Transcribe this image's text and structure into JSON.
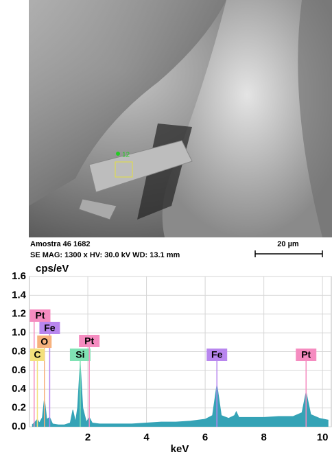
{
  "sem_image": {
    "marker": "12",
    "caption_title": "Amostra 46 1682",
    "caption_details": "SE  MAG: 1300 x  HV: 30.0 kV  WD: 13.1 mm",
    "scale_bar": "20 µm"
  },
  "chart_data": {
    "type": "area",
    "y_label": "cps/eV",
    "x_label": "keV",
    "x": [
      0.1,
      0.2,
      0.28,
      0.35,
      0.45,
      0.52,
      0.6,
      0.7,
      0.8,
      1.0,
      1.2,
      1.4,
      1.49,
      1.58,
      1.65,
      1.74,
      1.83,
      1.95,
      2.05,
      2.15,
      2.4,
      3.0,
      3.5,
      4.0,
      4.5,
      5.0,
      5.5,
      6.0,
      6.25,
      6.4,
      6.55,
      6.8,
      7.0,
      7.06,
      7.15,
      7.5,
      8.0,
      8.5,
      9.0,
      9.3,
      9.44,
      9.6,
      9.9,
      10.2
    ],
    "values": [
      0.02,
      0.05,
      0.08,
      0.04,
      0.1,
      0.3,
      0.08,
      0.1,
      0.03,
      0.02,
      0.02,
      0.04,
      0.18,
      0.05,
      0.2,
      0.68,
      0.2,
      0.05,
      0.1,
      0.04,
      0.03,
      0.03,
      0.03,
      0.04,
      0.05,
      0.05,
      0.06,
      0.08,
      0.12,
      0.45,
      0.12,
      0.09,
      0.12,
      0.16,
      0.1,
      0.1,
      0.1,
      0.11,
      0.11,
      0.15,
      0.37,
      0.13,
      0.09,
      0.07
    ],
    "color": "#35a3b6",
    "xlim": [
      0,
      10.3
    ],
    "ylim": [
      0,
      1.6
    ],
    "xticks": [
      2,
      4,
      6,
      8,
      10
    ],
    "yticks": [
      {
        "value": 0,
        "label": "0.0"
      },
      0.2,
      0.4,
      0.6,
      0.8,
      {
        "value": 1,
        "label": "1.0"
      },
      1.2,
      1.4,
      1.6
    ],
    "grid": true,
    "peak_labels": [
      {
        "label": "Pt",
        "energy": 0.17,
        "color": "#f58cc0"
      },
      {
        "label": "Fe",
        "energy": 0.7,
        "color": "#b886ee"
      },
      {
        "label": "O",
        "energy": 0.52,
        "color": "#f7b27e"
      },
      {
        "label": "C",
        "energy": 0.28,
        "color": "#f3e07c"
      },
      {
        "label": "Si",
        "energy": 1.74,
        "color": "#80e2b4"
      },
      {
        "label": "Pt",
        "energy": 2.05,
        "color": "#f58cc0"
      },
      {
        "label": "Fe",
        "energy": 6.4,
        "color": "#b886ee"
      },
      {
        "label": "Pt",
        "energy": 9.44,
        "color": "#f58cc0"
      }
    ]
  }
}
